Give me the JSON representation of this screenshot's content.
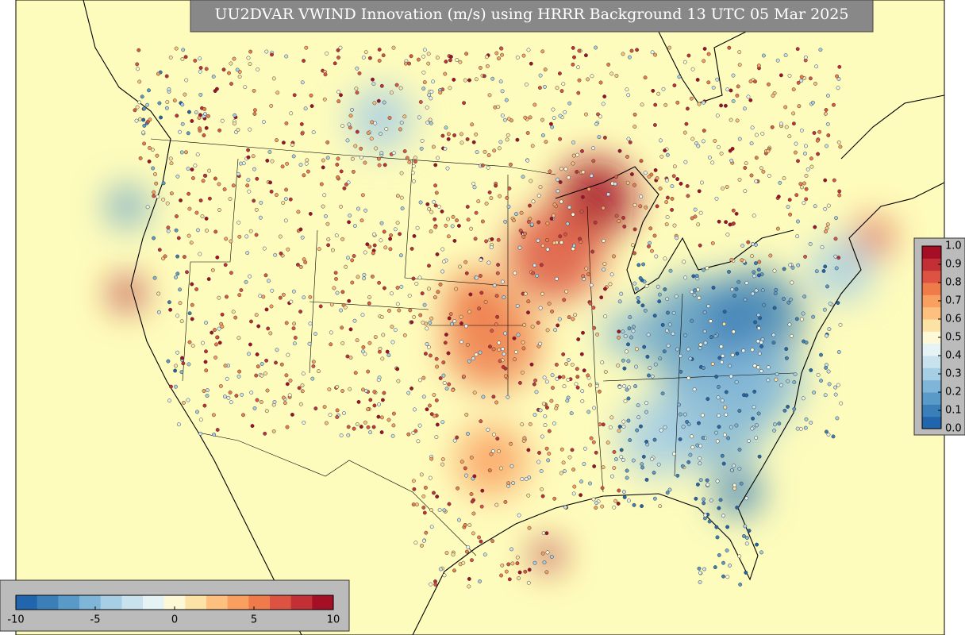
{
  "title": "UU2DVAR VWIND Innovation (m/s) using HRRR Background 13 UTC 05 Mar 2025",
  "colorbar_bottom": {
    "range": [
      -10,
      10
    ],
    "ticks": [
      -10,
      -5,
      0,
      5,
      10
    ]
  },
  "colorbar_right": {
    "range": [
      0,
      1
    ],
    "ticks": [
      {
        "value": 0,
        "label": "0.0"
      },
      {
        "value": 0.1,
        "label": "0.1"
      },
      {
        "value": 0.2,
        "label": "0.2"
      },
      {
        "value": 0.3,
        "label": "0.3"
      },
      {
        "value": 0.4,
        "label": "0.4"
      },
      {
        "value": 0.5,
        "label": "0.5"
      },
      {
        "value": 0.6,
        "label": "0.6"
      },
      {
        "value": 0.7,
        "label": "0.7"
      },
      {
        "value": 0.8,
        "label": "0.8"
      },
      {
        "value": 0.9,
        "label": "0.9"
      },
      {
        "value": 1,
        "label": "1.0"
      }
    ]
  }
}
